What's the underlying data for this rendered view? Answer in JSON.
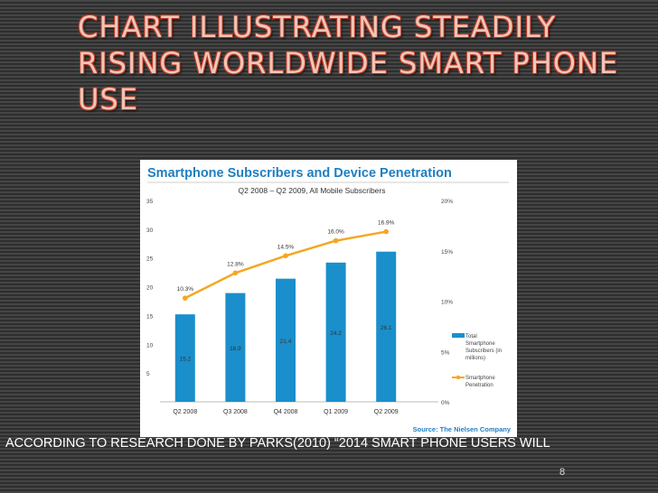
{
  "slide": {
    "title": "CHART ILLUSTRATING STEADILY RISING WORLDWIDE SMART PHONE USE",
    "footer_text": "ACCORDING TO RESEARCH DONE BY PARKS(2010) “2014 SMART PHONE USERS WILL",
    "slide_number": "8"
  },
  "chart_data": {
    "type": "bar",
    "title": "Smartphone Subscribers and Device Penetration",
    "subtitle": "Q2 2008 – Q2 2009, All Mobile Subscribers",
    "categories": [
      "Q2 2008",
      "Q3 2008",
      "Q4 2008",
      "Q1 2009",
      "Q2 2009"
    ],
    "series": [
      {
        "name": "Total Smartphone Subscribers (in millions)",
        "type": "bar",
        "axis": "left",
        "color": "#1a8fcb",
        "values": [
          15.2,
          18.9,
          21.4,
          24.2,
          26.1
        ],
        "labels": [
          "15.2",
          "18.9",
          "21.4",
          "24.2",
          "26.1"
        ]
      },
      {
        "name": "Smartphone Penetration",
        "type": "line",
        "axis": "right",
        "color": "#f5a623",
        "values": [
          10.3,
          12.8,
          14.5,
          16.0,
          16.9
        ],
        "labels": [
          "10.3%",
          "12.8%",
          "14.5%",
          "16.0%",
          "16.9%"
        ]
      }
    ],
    "y_left": {
      "ylim": [
        0,
        35
      ],
      "ticks": [
        "35",
        "30",
        "25",
        "20",
        "15",
        "10",
        "5"
      ]
    },
    "y_right": {
      "ylim": [
        0,
        20
      ],
      "ticks": [
        "20%",
        "15%",
        "10%",
        "5%",
        "0%"
      ]
    },
    "legend_position": "right",
    "source": "Source: The Nielsen Company"
  }
}
